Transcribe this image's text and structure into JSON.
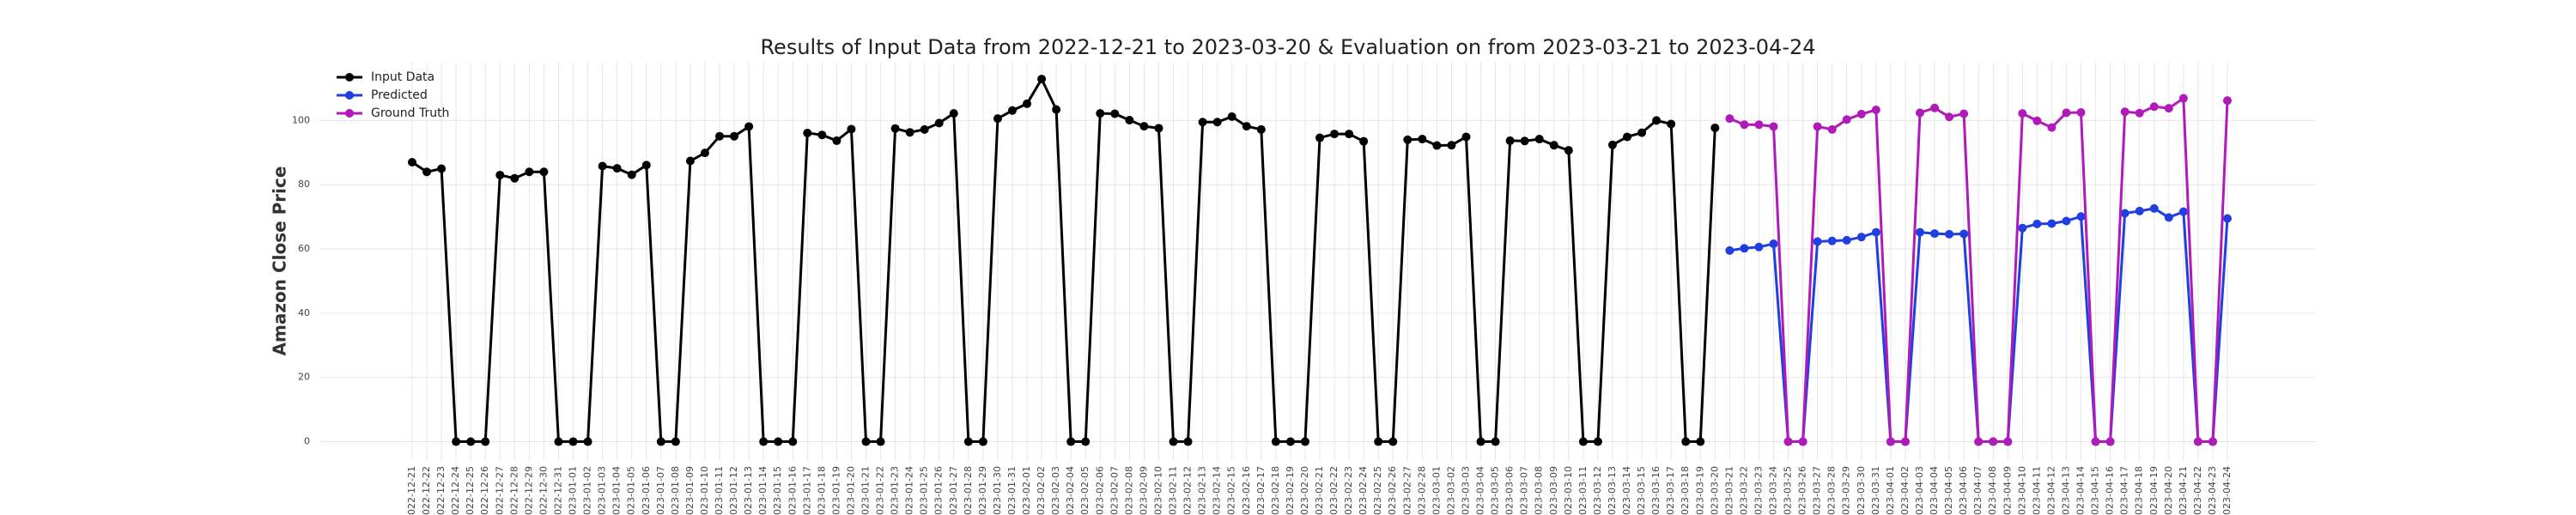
{
  "chart_data": {
    "type": "line",
    "title": "Results of Input Data from 2022-12-21 to 2023-03-20 & Evaluation on from 2023-03-21 to 2023-04-24",
    "y_label": "Amazon Close Price",
    "categories": [
      "2022-12-21",
      "2022-12-22",
      "2022-12-23",
      "2022-12-24",
      "2022-12-25",
      "2022-12-26",
      "2022-12-27",
      "2022-12-28",
      "2022-12-29",
      "2022-12-30",
      "2022-12-31",
      "2023-01-01",
      "2023-01-02",
      "2023-01-03",
      "2023-01-04",
      "2023-01-05",
      "2023-01-06",
      "2023-01-07",
      "2023-01-08",
      "2023-01-09",
      "2023-01-10",
      "2023-01-11",
      "2023-01-12",
      "2023-01-13",
      "2023-01-14",
      "2023-01-15",
      "2023-01-16",
      "2023-01-17",
      "2023-01-18",
      "2023-01-19",
      "2023-01-20",
      "2023-01-21",
      "2023-01-22",
      "2023-01-23",
      "2023-01-24",
      "2023-01-25",
      "2023-01-26",
      "2023-01-27",
      "2023-01-28",
      "2023-01-29",
      "2023-01-30",
      "2023-01-31",
      "2023-02-01",
      "2023-02-02",
      "2023-02-03",
      "2023-02-04",
      "2023-02-05",
      "2023-02-06",
      "2023-02-07",
      "2023-02-08",
      "2023-02-09",
      "2023-02-10",
      "2023-02-11",
      "2023-02-12",
      "2023-02-13",
      "2023-02-14",
      "2023-02-15",
      "2023-02-16",
      "2023-02-17",
      "2023-02-18",
      "2023-02-19",
      "2023-02-20",
      "2023-02-21",
      "2023-02-22",
      "2023-02-23",
      "2023-02-24",
      "2023-02-25",
      "2023-02-26",
      "2023-02-27",
      "2023-02-28",
      "2023-03-01",
      "2023-03-02",
      "2023-03-03",
      "2023-03-04",
      "2023-03-05",
      "2023-03-06",
      "2023-03-07",
      "2023-03-08",
      "2023-03-09",
      "2023-03-10",
      "2023-03-11",
      "2023-03-12",
      "2023-03-13",
      "2023-03-14",
      "2023-03-15",
      "2023-03-16",
      "2023-03-17",
      "2023-03-18",
      "2023-03-19",
      "2023-03-20",
      "2023-03-21",
      "2023-03-22",
      "2023-03-23",
      "2023-03-24",
      "2023-03-25",
      "2023-03-26",
      "2023-03-27",
      "2023-03-28",
      "2023-03-29",
      "2023-03-30",
      "2023-03-31",
      "2023-04-01",
      "2023-04-02",
      "2023-04-03",
      "2023-04-04",
      "2023-04-05",
      "2023-04-06",
      "2023-04-07",
      "2023-04-08",
      "2023-04-09",
      "2023-04-10",
      "2023-04-11",
      "2023-04-12",
      "2023-04-13",
      "2023-04-14",
      "2023-04-15",
      "2023-04-16",
      "2023-04-17",
      "2023-04-18",
      "2023-04-19",
      "2023-04-20",
      "2023-04-21",
      "2023-04-22",
      "2023-04-23",
      "2023-04-24"
    ],
    "series": [
      {
        "name": "Input Data",
        "color": "#000000",
        "values": [
          87,
          84,
          85,
          0,
          0,
          0,
          83,
          82,
          84,
          84,
          0,
          0,
          0,
          85.8,
          85.1,
          83.1,
          86.1,
          0,
          0,
          87.4,
          89.9,
          95.1,
          95.1,
          98.1,
          0,
          0,
          0,
          96.1,
          95.5,
          93.7,
          97.3,
          0,
          0,
          97.5,
          96.3,
          97.2,
          99.2,
          102.2,
          0,
          0,
          100.6,
          103.1,
          105.2,
          112.9,
          103.4,
          0,
          0,
          102.2,
          102.1,
          100.1,
          98.2,
          97.6,
          0,
          0,
          99.5,
          99.5,
          101.2,
          98.2,
          97.2,
          0,
          0,
          0,
          94.6,
          95.8,
          95.8,
          93.5,
          0,
          0,
          94,
          94.2,
          92.2,
          92.3,
          94.9,
          0,
          0,
          93.7,
          93.6,
          94.2,
          92.3,
          90.7,
          0,
          0,
          92.4,
          94.9,
          96.2,
          100,
          98.9,
          0,
          0,
          97.7,
          null,
          null,
          null,
          null,
          null,
          null,
          null,
          null,
          null,
          null,
          null,
          null,
          null,
          null,
          null,
          null,
          null,
          null,
          null,
          null,
          null,
          null,
          null,
          null,
          null,
          null,
          null,
          null,
          null,
          null,
          null,
          null,
          null,
          null,
          null
        ]
      },
      {
        "name": "Predicted",
        "color": "#1f3fe0",
        "values": [
          null,
          null,
          null,
          null,
          null,
          null,
          null,
          null,
          null,
          null,
          null,
          null,
          null,
          null,
          null,
          null,
          null,
          null,
          null,
          null,
          null,
          null,
          null,
          null,
          null,
          null,
          null,
          null,
          null,
          null,
          null,
          null,
          null,
          null,
          null,
          null,
          null,
          null,
          null,
          null,
          null,
          null,
          null,
          null,
          null,
          null,
          null,
          null,
          null,
          null,
          null,
          null,
          null,
          null,
          null,
          null,
          null,
          null,
          null,
          null,
          null,
          null,
          null,
          null,
          null,
          null,
          null,
          null,
          null,
          null,
          null,
          null,
          null,
          null,
          null,
          null,
          null,
          null,
          null,
          null,
          null,
          null,
          null,
          null,
          null,
          null,
          null,
          null,
          null,
          null,
          59.5,
          60.2,
          60.6,
          61.6,
          0,
          0,
          62.3,
          62.5,
          62.7,
          63.7,
          65.2,
          0,
          0,
          65.2,
          64.8,
          64.6,
          64.7,
          0,
          0,
          0,
          66.5,
          67.8,
          67.9,
          68.7,
          70.1,
          0,
          0,
          71.1,
          71.8,
          72.6,
          69.8,
          71.6,
          0,
          0,
          69.5
        ]
      },
      {
        "name": "Ground Truth",
        "color": "#b01ab8",
        "values": [
          null,
          null,
          null,
          null,
          null,
          null,
          null,
          null,
          null,
          null,
          null,
          null,
          null,
          null,
          null,
          null,
          null,
          null,
          null,
          null,
          null,
          null,
          null,
          null,
          null,
          null,
          null,
          null,
          null,
          null,
          null,
          null,
          null,
          null,
          null,
          null,
          null,
          null,
          null,
          null,
          null,
          null,
          null,
          null,
          null,
          null,
          null,
          null,
          null,
          null,
          null,
          null,
          null,
          null,
          null,
          null,
          null,
          null,
          null,
          null,
          null,
          null,
          null,
          null,
          null,
          null,
          null,
          null,
          null,
          null,
          null,
          null,
          null,
          null,
          null,
          null,
          null,
          null,
          null,
          null,
          null,
          null,
          null,
          null,
          null,
          null,
          null,
          null,
          null,
          null,
          100.6,
          98.7,
          98.7,
          98.1,
          0,
          0,
          98.1,
          97.2,
          100.3,
          102,
          103.3,
          0,
          0,
          102.4,
          103.9,
          101.1,
          102.1,
          0,
          0,
          0,
          102.2,
          99.9,
          97.8,
          102.4,
          102.5,
          0,
          0,
          102.7,
          102.3,
          104.3,
          103.8,
          106.9,
          0,
          0,
          106.2
        ]
      }
    ],
    "ylim": [
      -6,
      118
    ],
    "yticks": [
      0,
      20,
      40,
      60,
      80,
      100
    ],
    "grid": true,
    "legend": "upper left"
  }
}
